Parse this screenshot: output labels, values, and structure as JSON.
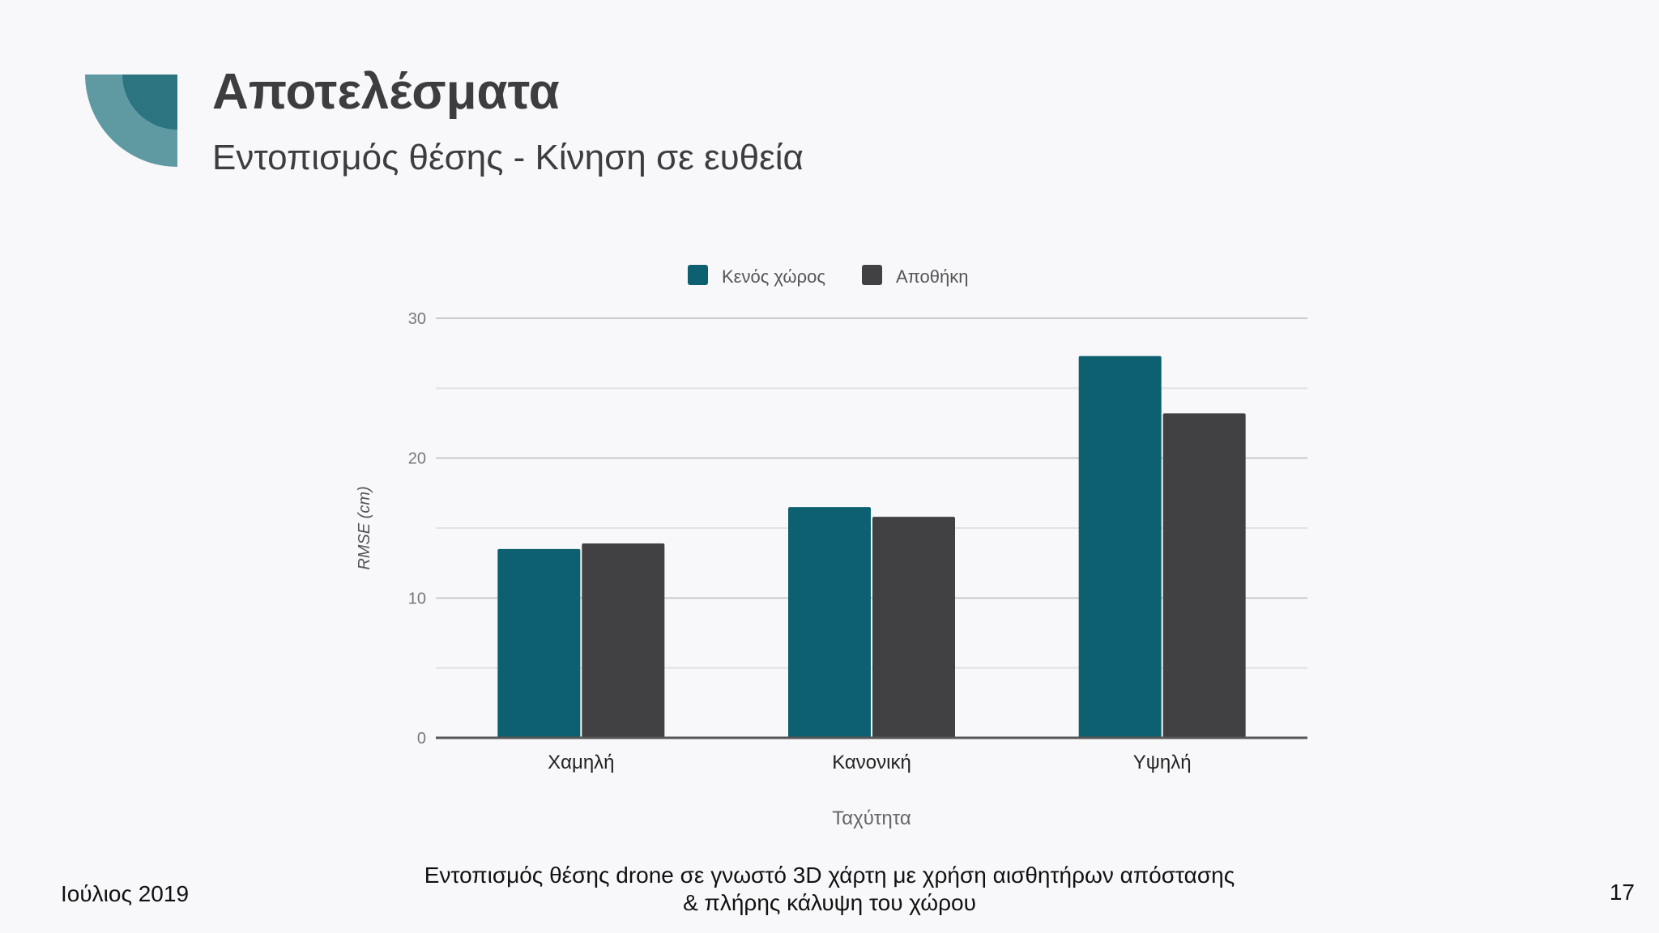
{
  "slide": {
    "title": "Αποτελέσματα",
    "subtitle": "Εντοπισμός θέσης - Κίνηση σε ευθεία",
    "footer_left": "Ιούλιος 2019",
    "footer_center_line1": "Εντοπισμός θέσης drone σε γνωστό 3D χάρτη με χρήση αισθητήρων απόστασης",
    "footer_center_line2": "& πλήρης κάλυψη του χώρου",
    "page_number": "17"
  },
  "colors": {
    "accent": "#0c6070",
    "dark": "#414042",
    "logo_outer": "#5f9aa3",
    "logo_inner": "#2c7480"
  },
  "chart_data": {
    "type": "bar",
    "xlabel": "Ταχύτητα",
    "ylabel": "RMSE (cm)",
    "ylim": [
      0,
      30
    ],
    "yticks": [
      0,
      10,
      20,
      30
    ],
    "grid": true,
    "legend_position": "top",
    "categories": [
      "Χαμηλή",
      "Κανονική",
      "Υψηλή"
    ],
    "series": [
      {
        "name": "Κενός χώρος",
        "color": "#0c6070",
        "values": [
          13.5,
          16.5,
          27.3
        ]
      },
      {
        "name": "Αποθήκη",
        "color": "#414042",
        "values": [
          13.9,
          15.8,
          23.2
        ]
      }
    ]
  }
}
